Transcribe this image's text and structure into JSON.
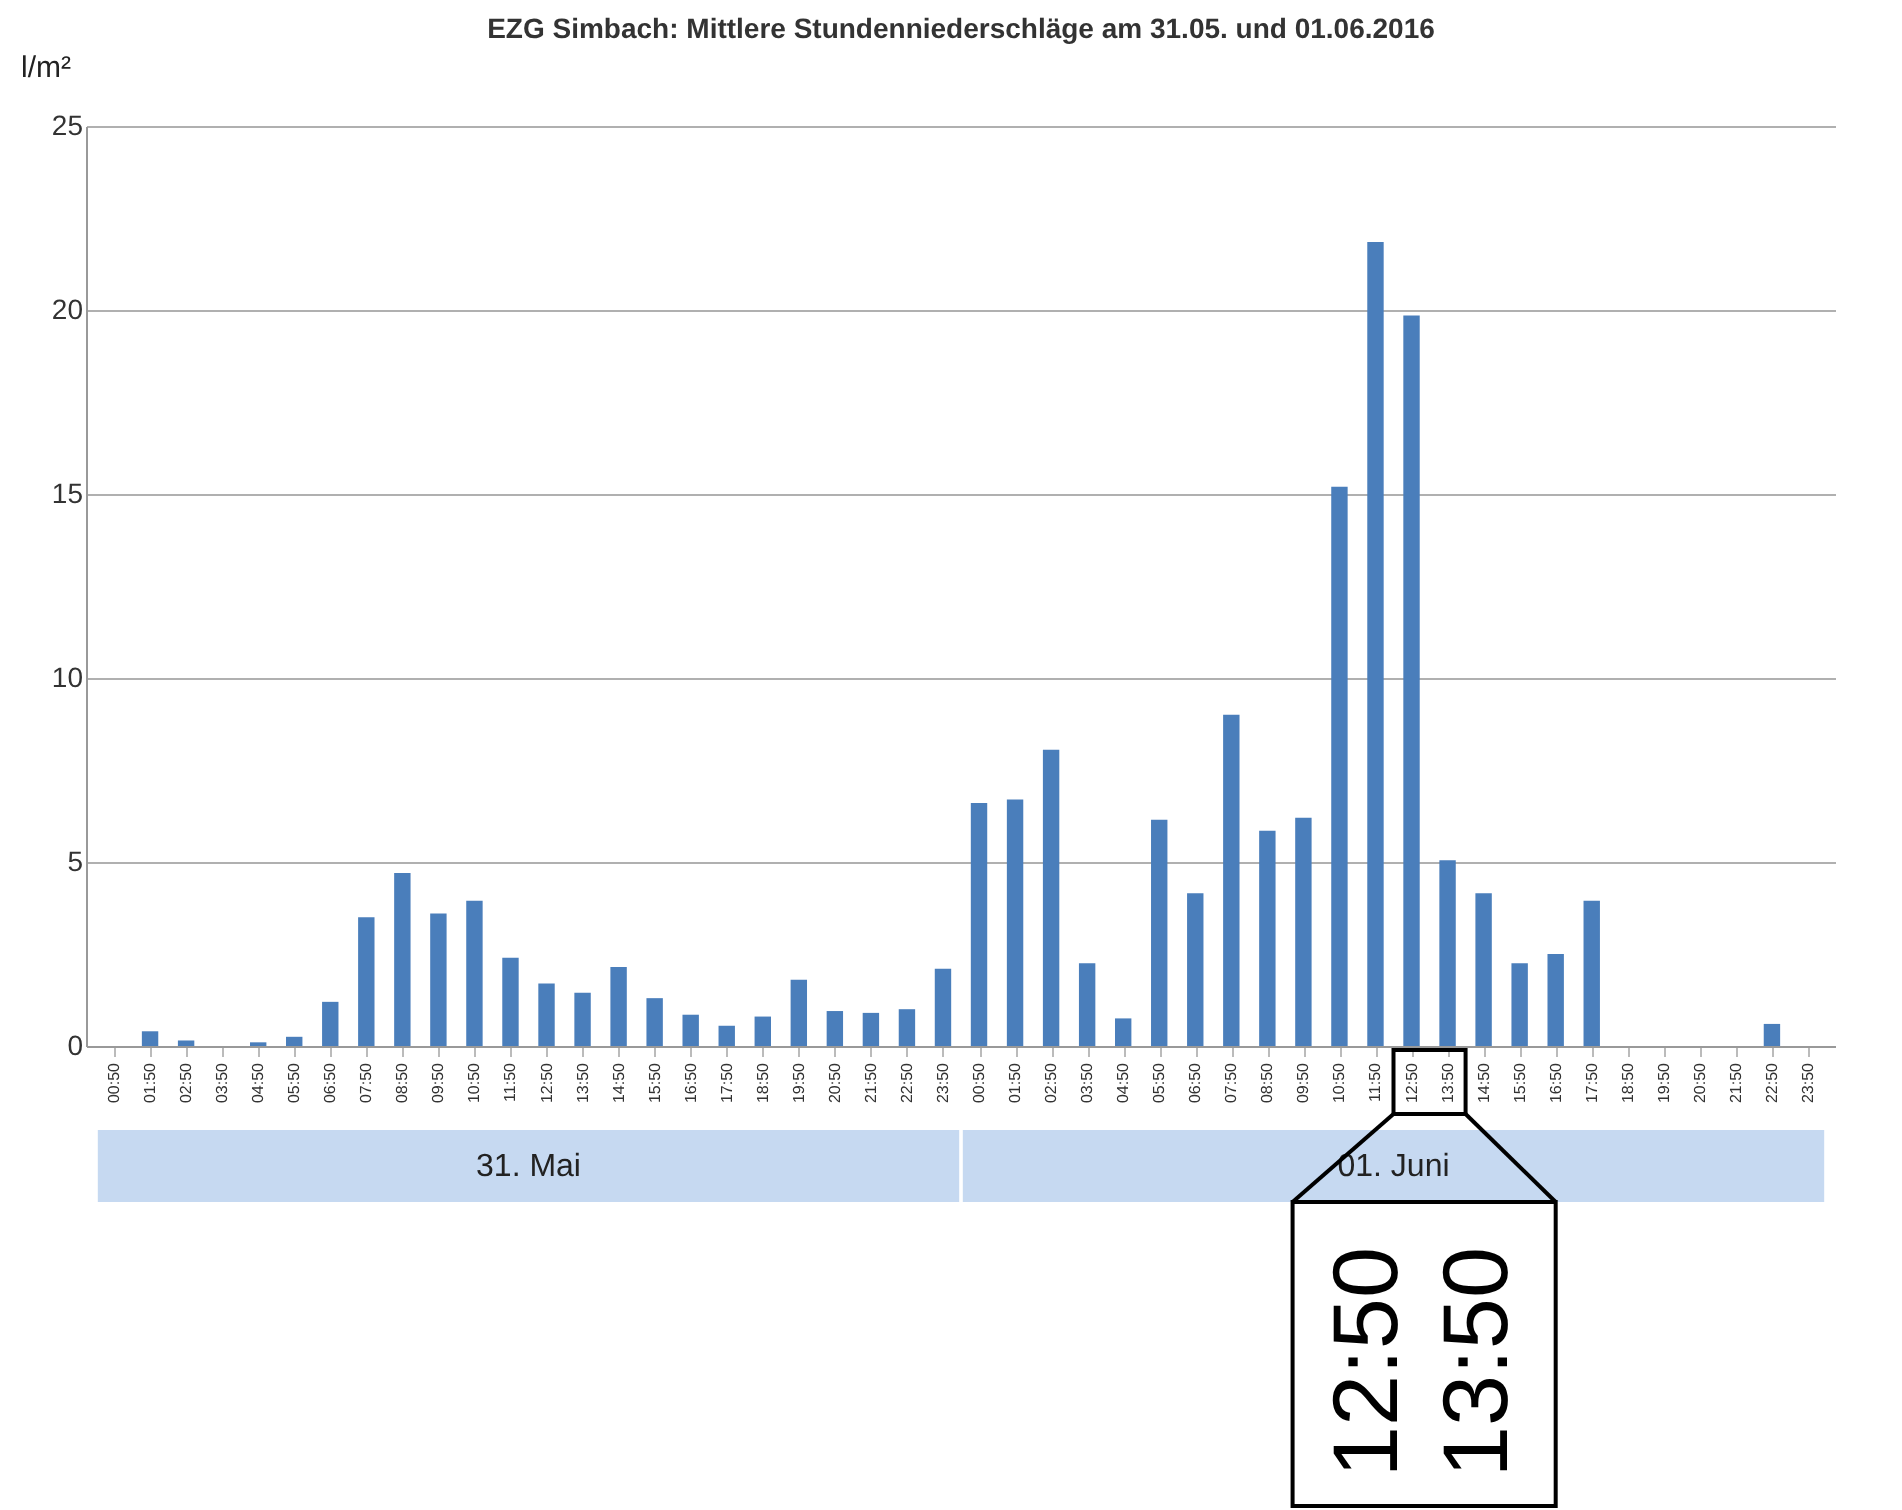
{
  "chart_data": {
    "type": "bar",
    "title": "EZG Simbach: Mittlere Stundenniederschläge am 31.05. und 01.06.2016",
    "ylabel": "l/m²",
    "categories": [
      "00:50",
      "01:50",
      "02:50",
      "03:50",
      "04:50",
      "05:50",
      "06:50",
      "07:50",
      "08:50",
      "09:50",
      "10:50",
      "11:50",
      "12:50",
      "13:50",
      "14:50",
      "15:50",
      "16:50",
      "17:50",
      "18:50",
      "19:50",
      "20:50",
      "21:50",
      "22:50",
      "23:50",
      "00:50",
      "01:50",
      "02:50",
      "03:50",
      "04:50",
      "05:50",
      "06:50",
      "07:50",
      "08:50",
      "09:50",
      "10:50",
      "11:50",
      "12:50",
      "13:50",
      "14:50",
      "15:50",
      "16:50",
      "17:50",
      "18:50",
      "19:50",
      "20:50",
      "21:50",
      "22:50",
      "23:50"
    ],
    "values": [
      0,
      0.4,
      0.15,
      0,
      0.1,
      0.25,
      1.2,
      3.5,
      4.7,
      3.6,
      3.95,
      2.4,
      1.7,
      1.45,
      2.15,
      1.3,
      0.85,
      0.55,
      0.8,
      1.8,
      0.95,
      0.9,
      1.0,
      2.1,
      6.6,
      6.7,
      8.05,
      2.25,
      0.75,
      6.15,
      4.15,
      9.0,
      5.85,
      6.2,
      15.2,
      21.85,
      19.85,
      5.05,
      4.15,
      2.25,
      2.5,
      3.95,
      0,
      0,
      0,
      0,
      0.6,
      0
    ],
    "color": "#4a7ebb",
    "ylim": [
      0,
      25
    ],
    "yticks": [
      0,
      5,
      10,
      15,
      20,
      25
    ],
    "grid": "y",
    "annotations": [
      "31. Mai",
      "01. Juni",
      "12:50",
      "13:50"
    ]
  }
}
